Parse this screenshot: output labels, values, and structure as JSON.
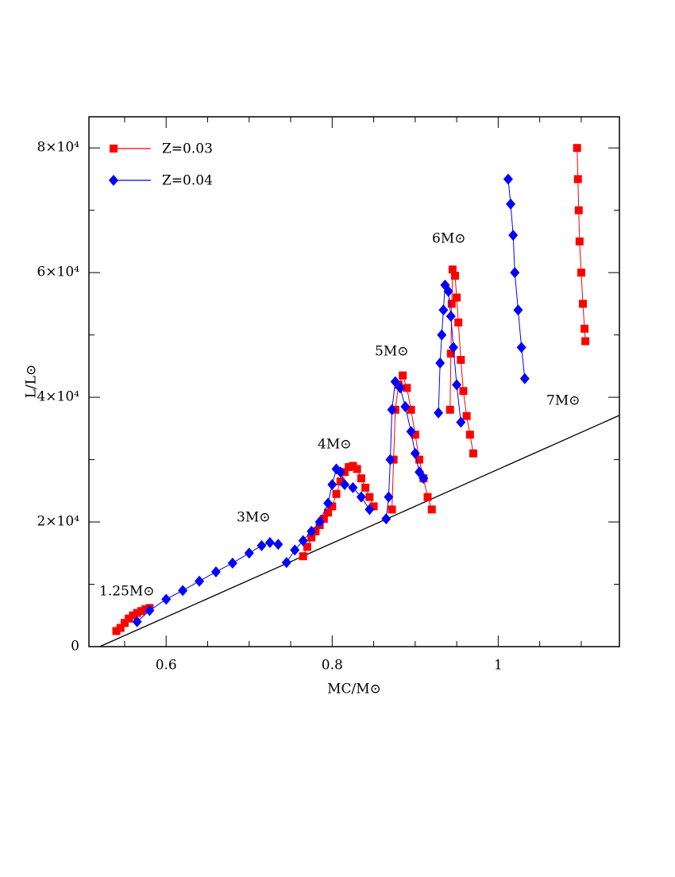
{
  "chart_data": {
    "type": "scatter",
    "xlabel": "MC/M⊙",
    "ylabel": "L/L⊙",
    "xlim": [
      0.507,
      1.146
    ],
    "ylim": [
      0,
      85000
    ],
    "xticks": [
      0.6,
      0.8,
      1
    ],
    "xminorticks": [
      0.55,
      0.65,
      0.7,
      0.75,
      0.85,
      0.9,
      0.95,
      1.05,
      1.1
    ],
    "yticks": [
      0,
      {
        "value": 20000,
        "label": "2×10⁴"
      },
      {
        "value": 40000,
        "label": "4×10⁴"
      },
      {
        "value": 60000,
        "label": "6×10⁴"
      },
      {
        "value": 80000,
        "label": "8×10⁴"
      }
    ],
    "yminorticks": [
      10000,
      30000,
      50000,
      70000
    ],
    "legend": "upper left",
    "series": [
      {
        "name": "Z=0.03",
        "color": "#ff0000",
        "marker": "square",
        "x": [
          0.54,
          0.545,
          0.55,
          0.555,
          0.56,
          0.565,
          0.57,
          0.575,
          0.58,
          null,
          0.765,
          0.77,
          0.775,
          0.78,
          0.785,
          0.79,
          0.795,
          0.8,
          0.805,
          0.81,
          0.815,
          0.82,
          0.825,
          0.83,
          0.835,
          0.84,
          0.845,
          0.85,
          null,
          0.872,
          0.874,
          0.876,
          0.88,
          0.885,
          0.89,
          0.895,
          0.9,
          0.905,
          0.91,
          0.915,
          0.92,
          null,
          0.942,
          0.943,
          0.944,
          0.945,
          0.948,
          0.95,
          0.952,
          0.955,
          0.958,
          0.962,
          0.966,
          0.97,
          null,
          1.095,
          1.096,
          1.097,
          1.098,
          1.1,
          1.102,
          1.104,
          1.105
        ],
        "values": [
          2500,
          3000,
          3800,
          4500,
          5000,
          5400,
          5700,
          6000,
          6200,
          null,
          14500,
          16000,
          17500,
          18500,
          19500,
          20500,
          21500,
          22500,
          24500,
          26500,
          28000,
          28800,
          29000,
          28500,
          27000,
          25500,
          24000,
          22500,
          null,
          22000,
          30000,
          38000,
          42000,
          43500,
          41500,
          38000,
          34000,
          30000,
          27000,
          24000,
          22000,
          null,
          38000,
          47000,
          55000,
          60500,
          59500,
          56000,
          52000,
          46000,
          41000,
          37000,
          34000,
          31000,
          null,
          80000,
          75000,
          70000,
          65000,
          60000,
          55000,
          51000,
          49000
        ]
      },
      {
        "name": "Z=0.04",
        "color": "#0000ff",
        "marker": "diamond",
        "x": [
          0.565,
          0.58,
          0.6,
          0.62,
          0.64,
          0.66,
          0.68,
          0.7,
          0.715,
          0.725,
          0.735,
          null,
          0.745,
          0.755,
          0.765,
          0.775,
          0.785,
          0.795,
          0.8,
          0.805,
          0.81,
          0.815,
          0.825,
          0.835,
          0.845,
          null,
          0.865,
          0.868,
          0.87,
          0.872,
          0.876,
          0.882,
          0.888,
          0.895,
          0.9,
          0.905,
          0.91,
          null,
          0.928,
          0.93,
          0.932,
          0.934,
          0.936,
          0.94,
          0.943,
          0.946,
          0.95,
          0.955,
          null,
          1.012,
          1.015,
          1.018,
          1.02,
          1.024,
          1.028,
          1.032
        ],
        "values": [
          4000,
          5800,
          7600,
          9000,
          10500,
          12000,
          13400,
          15000,
          16200,
          16700,
          16400,
          null,
          13500,
          15500,
          17000,
          18500,
          20000,
          23000,
          26000,
          28500,
          28000,
          26000,
          25500,
          24000,
          22000,
          null,
          20500,
          24000,
          30000,
          38000,
          42500,
          41500,
          38500,
          34500,
          31000,
          28000,
          27000,
          null,
          37500,
          45500,
          50000,
          54000,
          58000,
          57000,
          53000,
          48000,
          42000,
          36000,
          null,
          75000,
          71000,
          66000,
          60000,
          54000,
          48000,
          43000
        ]
      }
    ],
    "reference_line": {
      "color": "#000000",
      "x": [
        0.52,
        1.146
      ],
      "values": [
        0,
        37100
      ]
    },
    "annotations": [
      "1.25M⊙",
      "3M⊙",
      "4M⊙",
      "5M⊙",
      "6M⊙",
      "7M⊙"
    ]
  }
}
